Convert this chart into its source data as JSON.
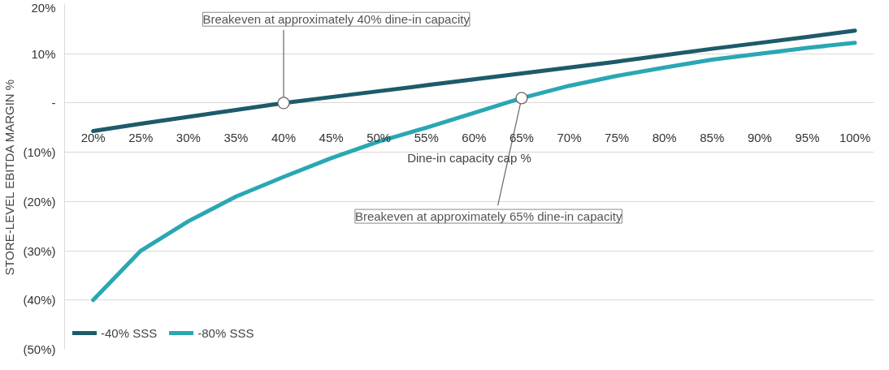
{
  "chart_data": {
    "type": "line",
    "ylabel": "STORE-LEVEL EBITDA MARGIN %",
    "xlabel": "Dine-in capacity cap %",
    "x": [
      20,
      25,
      30,
      35,
      40,
      45,
      50,
      55,
      60,
      65,
      70,
      75,
      80,
      85,
      90,
      95,
      100
    ],
    "series": [
      {
        "name": "-40% SSS",
        "color": "#1d5b6b",
        "values": [
          -5.7,
          -4.2,
          -2.8,
          -1.4,
          0,
          1.2,
          2.4,
          3.6,
          4.8,
          6.0,
          7.2,
          8.4,
          9.7,
          11.0,
          12.2,
          13.4,
          14.7
        ]
      },
      {
        "name": "-80% SSS",
        "color": "#2aa7b3",
        "values": [
          -40,
          -30,
          -24,
          -19,
          -15,
          -11.2,
          -7.8,
          -5,
          -2,
          1,
          3.5,
          5.5,
          7.2,
          8.8,
          10.0,
          11.2,
          12.2
        ]
      }
    ],
    "xlim": [
      17,
      102
    ],
    "ylim": [
      -50,
      20
    ],
    "xticks": [
      {
        "value": 20,
        "label": "20%"
      },
      {
        "value": 25,
        "label": "25%"
      },
      {
        "value": 30,
        "label": "30%"
      },
      {
        "value": 35,
        "label": "35%"
      },
      {
        "value": 40,
        "label": "40%"
      },
      {
        "value": 45,
        "label": "45%"
      },
      {
        "value": 50,
        "label": "50%"
      },
      {
        "value": 55,
        "label": "55%"
      },
      {
        "value": 60,
        "label": "60%"
      },
      {
        "value": 65,
        "label": "65%"
      },
      {
        "value": 70,
        "label": "70%"
      },
      {
        "value": 75,
        "label": "75%"
      },
      {
        "value": 80,
        "label": "80%"
      },
      {
        "value": 85,
        "label": "85%"
      },
      {
        "value": 90,
        "label": "90%"
      },
      {
        "value": 95,
        "label": "95%"
      },
      {
        "value": 100,
        "label": "100%"
      }
    ],
    "yticks": [
      {
        "value": 20,
        "label": "20%"
      },
      {
        "value": 10,
        "label": "10%"
      },
      {
        "value": 0,
        "label": "-"
      },
      {
        "value": -10,
        "label": "(10%)"
      },
      {
        "value": -20,
        "label": "(20%)"
      },
      {
        "value": -30,
        "label": "(30%)"
      },
      {
        "value": -40,
        "label": "(40%)"
      },
      {
        "value": -50,
        "label": "(50%)"
      }
    ],
    "grid": "y",
    "legend": "bottom left",
    "marker": "none",
    "line_style": "solid",
    "annotations": [
      {
        "text": "Breakeven at approximately 40% dine-in capacity",
        "x": 40,
        "y": 0
      },
      {
        "text": "Breakeven at approximately 65% dine-in capacity",
        "x": 65,
        "y": 1
      }
    ]
  }
}
